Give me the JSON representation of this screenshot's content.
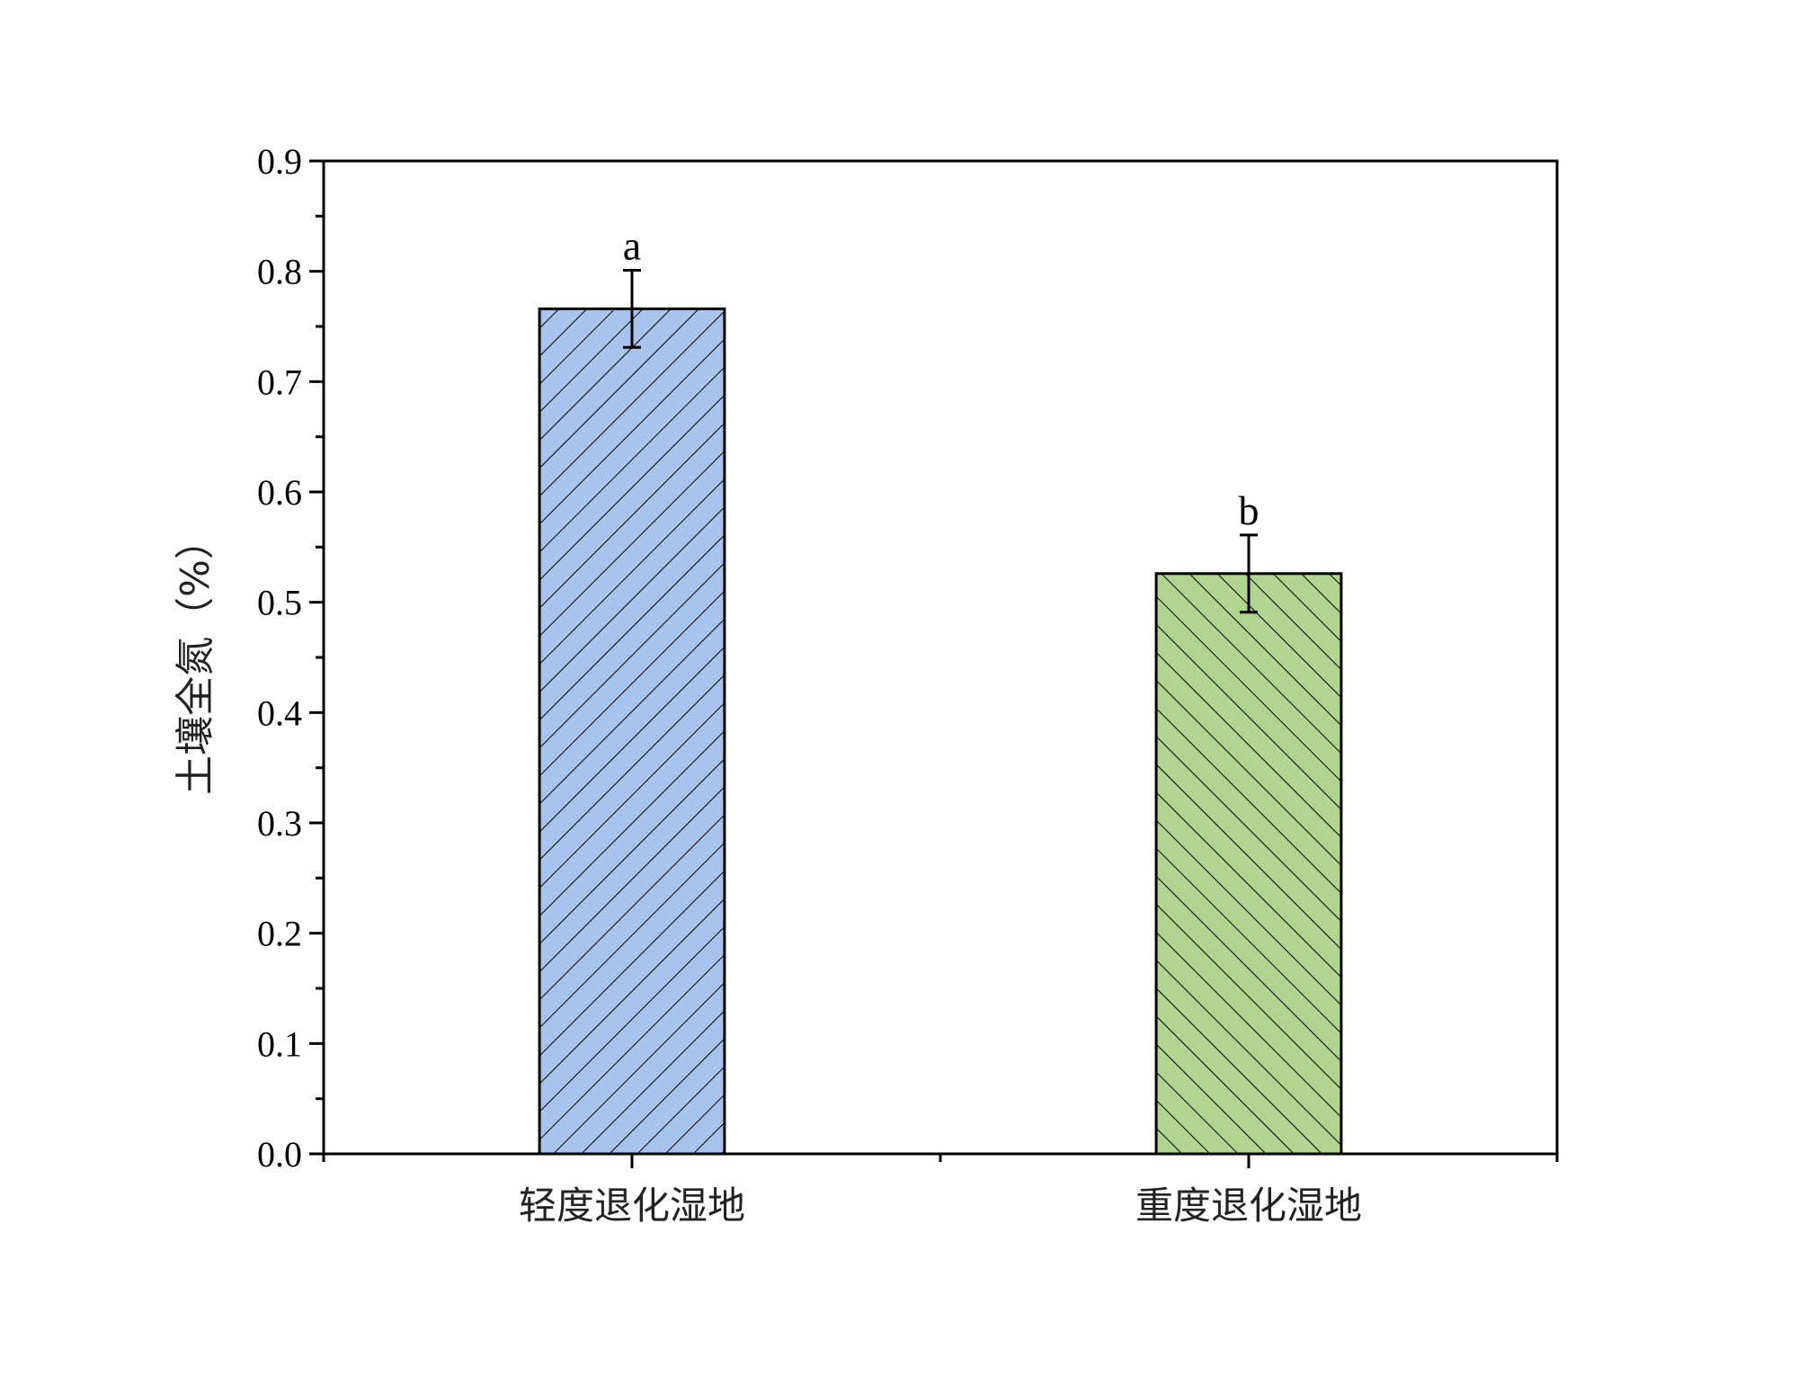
{
  "chart_data": {
    "type": "bar",
    "title": "",
    "xlabel": "",
    "ylabel": "土壤全氮（%）",
    "categories": [
      "轻度退化湿地",
      "重度退化湿地"
    ],
    "values": [
      0.766,
      0.526
    ],
    "errors": [
      0.035,
      0.035
    ],
    "significance_labels": [
      "a",
      "b"
    ],
    "colors": [
      "#a9c4ec",
      "#b0d590"
    ],
    "hatch": [
      "forward-diagonal",
      "backward-diagonal"
    ],
    "ylim": [
      0,
      0.9
    ],
    "yticks": [
      0.0,
      0.1,
      0.2,
      0.3,
      0.4,
      0.5,
      0.6,
      0.7,
      0.8,
      0.9
    ],
    "ytick_labels": [
      "0.0",
      "0.1",
      "0.2",
      "0.3",
      "0.4",
      "0.5",
      "0.6",
      "0.7",
      "0.8",
      "0.9"
    ],
    "grid": false,
    "legend": "none"
  }
}
